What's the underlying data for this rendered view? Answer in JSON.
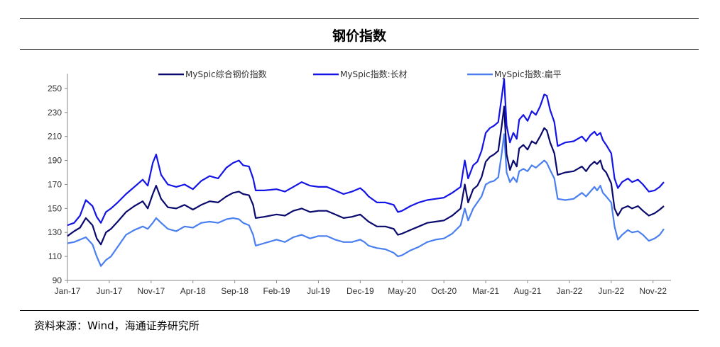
{
  "title": "钢价指数",
  "source": "资料来源：Wind，海通证券研究所",
  "chart_data": {
    "type": "line",
    "title": "钢价指数",
    "xlabel": "",
    "ylabel": "",
    "ylim": [
      90,
      260
    ],
    "yticks": [
      90,
      110,
      130,
      150,
      170,
      190,
      210,
      230,
      250
    ],
    "xlim": [
      0,
      71.3
    ],
    "xticks": [
      {
        "label": "Jan-17",
        "x": 0
      },
      {
        "label": "Jun-17",
        "x": 5
      },
      {
        "label": "Nov-17",
        "x": 10
      },
      {
        "label": "Apr-18",
        "x": 15
      },
      {
        "label": "Sep-18",
        "x": 20
      },
      {
        "label": "Feb-19",
        "x": 25
      },
      {
        "label": "Jul-19",
        "x": 30
      },
      {
        "label": "Dec-19",
        "x": 35
      },
      {
        "label": "May-20",
        "x": 40
      },
      {
        "label": "Oct-20",
        "x": 45
      },
      {
        "label": "Mar-21",
        "x": 50
      },
      {
        "label": "Aug-21",
        "x": 55
      },
      {
        "label": "Jan-22",
        "x": 60
      },
      {
        "label": "Jun-22",
        "x": 65
      },
      {
        "label": "Nov-22",
        "x": 70
      }
    ],
    "legend_position": "top",
    "series": [
      {
        "name": "MySpic综合钢价指数",
        "color": "#0a0a6e",
        "points": [
          [
            0,
            127
          ],
          [
            0.8,
            131
          ],
          [
            1.5,
            134
          ],
          [
            2.2,
            142
          ],
          [
            3,
            136
          ],
          [
            3.5,
            125
          ],
          [
            4,
            120
          ],
          [
            4.6,
            130
          ],
          [
            5.2,
            133
          ],
          [
            6,
            139
          ],
          [
            7,
            147
          ],
          [
            8,
            152
          ],
          [
            9,
            156
          ],
          [
            9.6,
            150
          ],
          [
            10.2,
            162
          ],
          [
            10.6,
            169
          ],
          [
            11.2,
            158
          ],
          [
            12,
            151
          ],
          [
            13,
            150
          ],
          [
            14,
            153
          ],
          [
            15,
            149
          ],
          [
            16,
            153
          ],
          [
            17,
            156
          ],
          [
            18,
            155
          ],
          [
            19,
            160
          ],
          [
            19.8,
            163
          ],
          [
            20.5,
            164
          ],
          [
            21,
            162
          ],
          [
            21.7,
            161
          ],
          [
            22.2,
            153
          ],
          [
            22.5,
            142
          ],
          [
            23.5,
            143
          ],
          [
            25,
            145
          ],
          [
            26,
            144
          ],
          [
            27,
            148
          ],
          [
            28,
            150
          ],
          [
            29,
            147
          ],
          [
            30,
            148
          ],
          [
            31,
            148
          ],
          [
            32,
            145
          ],
          [
            33,
            142
          ],
          [
            34,
            143
          ],
          [
            35,
            145
          ],
          [
            35.5,
            142
          ],
          [
            36,
            139
          ],
          [
            37,
            135
          ],
          [
            38,
            135
          ],
          [
            39,
            133
          ],
          [
            39.5,
            128
          ],
          [
            40,
            129
          ],
          [
            41,
            132
          ],
          [
            42,
            135
          ],
          [
            43,
            138
          ],
          [
            44,
            139
          ],
          [
            45,
            140
          ],
          [
            46,
            144
          ],
          [
            47,
            150
          ],
          [
            47.5,
            170
          ],
          [
            47.9,
            155
          ],
          [
            48.5,
            166
          ],
          [
            49,
            169
          ],
          [
            49.5,
            176
          ],
          [
            50,
            189
          ],
          [
            50.5,
            193
          ],
          [
            51,
            195
          ],
          [
            51.5,
            198
          ],
          [
            51.9,
            218
          ],
          [
            52.2,
            235
          ],
          [
            52.5,
            195
          ],
          [
            52.9,
            182
          ],
          [
            53.3,
            190
          ],
          [
            53.7,
            185
          ],
          [
            54,
            200
          ],
          [
            54.5,
            203
          ],
          [
            55,
            199
          ],
          [
            55.5,
            206
          ],
          [
            56,
            204
          ],
          [
            56.5,
            210
          ],
          [
            57,
            217
          ],
          [
            57.3,
            215
          ],
          [
            57.7,
            205
          ],
          [
            58.2,
            196
          ],
          [
            58.6,
            178
          ],
          [
            59.5,
            180
          ],
          [
            60.5,
            181
          ],
          [
            61.5,
            185
          ],
          [
            62,
            181
          ],
          [
            62.5,
            186
          ],
          [
            63,
            189
          ],
          [
            63.3,
            187
          ],
          [
            63.7,
            190
          ],
          [
            64,
            183
          ],
          [
            64.4,
            180
          ],
          [
            65,
            171
          ],
          [
            65.4,
            150
          ],
          [
            65.8,
            144
          ],
          [
            66.3,
            150
          ],
          [
            67,
            152
          ],
          [
            67.5,
            150
          ],
          [
            68.2,
            152
          ],
          [
            68.8,
            148
          ],
          [
            69.5,
            144
          ],
          [
            70.2,
            146
          ],
          [
            70.8,
            149
          ],
          [
            71.3,
            152
          ]
        ]
      },
      {
        "name": "MySpic指数:长材",
        "color": "#1414e6",
        "points": [
          [
            0,
            136
          ],
          [
            0.8,
            138
          ],
          [
            1.5,
            144
          ],
          [
            2.2,
            157
          ],
          [
            3,
            152
          ],
          [
            3.5,
            143
          ],
          [
            4,
            138
          ],
          [
            4.6,
            147
          ],
          [
            5.2,
            150
          ],
          [
            6,
            155
          ],
          [
            7,
            162
          ],
          [
            8,
            168
          ],
          [
            9,
            174
          ],
          [
            9.6,
            169
          ],
          [
            10.2,
            188
          ],
          [
            10.6,
            195
          ],
          [
            11.2,
            178
          ],
          [
            12,
            170
          ],
          [
            13,
            168
          ],
          [
            14,
            170
          ],
          [
            15,
            166
          ],
          [
            16,
            173
          ],
          [
            17,
            177
          ],
          [
            18,
            175
          ],
          [
            19,
            184
          ],
          [
            19.8,
            188
          ],
          [
            20.5,
            190
          ],
          [
            21,
            186
          ],
          [
            21.7,
            185
          ],
          [
            22.2,
            175
          ],
          [
            22.5,
            165
          ],
          [
            23.5,
            165
          ],
          [
            25,
            166
          ],
          [
            26,
            164
          ],
          [
            27,
            168
          ],
          [
            28,
            172
          ],
          [
            29,
            169
          ],
          [
            30,
            168
          ],
          [
            31,
            168
          ],
          [
            32,
            165
          ],
          [
            33,
            162
          ],
          [
            34,
            164
          ],
          [
            35,
            167
          ],
          [
            35.5,
            164
          ],
          [
            36,
            160
          ],
          [
            37,
            155
          ],
          [
            38,
            155
          ],
          [
            39,
            153
          ],
          [
            39.5,
            147
          ],
          [
            40,
            148
          ],
          [
            41,
            152
          ],
          [
            42,
            155
          ],
          [
            43,
            157
          ],
          [
            44,
            158
          ],
          [
            45,
            159
          ],
          [
            46,
            163
          ],
          [
            47,
            168
          ],
          [
            47.5,
            190
          ],
          [
            47.9,
            175
          ],
          [
            48.5,
            186
          ],
          [
            49,
            189
          ],
          [
            49.5,
            198
          ],
          [
            50,
            213
          ],
          [
            50.5,
            217
          ],
          [
            51,
            219
          ],
          [
            51.5,
            222
          ],
          [
            51.9,
            242
          ],
          [
            52.2,
            258
          ],
          [
            52.5,
            219
          ],
          [
            52.9,
            205
          ],
          [
            53.3,
            213
          ],
          [
            53.7,
            208
          ],
          [
            54,
            224
          ],
          [
            54.5,
            228
          ],
          [
            55,
            223
          ],
          [
            55.5,
            231
          ],
          [
            56,
            228
          ],
          [
            56.5,
            235
          ],
          [
            57,
            245
          ],
          [
            57.3,
            244
          ],
          [
            57.7,
            232
          ],
          [
            58.2,
            222
          ],
          [
            58.6,
            202
          ],
          [
            59.5,
            205
          ],
          [
            60.5,
            206
          ],
          [
            61.5,
            210
          ],
          [
            62,
            206
          ],
          [
            62.5,
            211
          ],
          [
            63,
            214
          ],
          [
            63.3,
            211
          ],
          [
            63.7,
            213
          ],
          [
            64,
            207
          ],
          [
            64.4,
            203
          ],
          [
            65,
            196
          ],
          [
            65.4,
            175
          ],
          [
            65.8,
            167
          ],
          [
            66.3,
            172
          ],
          [
            67,
            175
          ],
          [
            67.5,
            172
          ],
          [
            68.2,
            174
          ],
          [
            68.8,
            170
          ],
          [
            69.5,
            164
          ],
          [
            70.2,
            165
          ],
          [
            70.8,
            168
          ],
          [
            71.3,
            172
          ]
        ]
      },
      {
        "name": "MySpic指数:扁平",
        "color": "#4a7ff0",
        "points": [
          [
            0,
            121
          ],
          [
            0.8,
            122
          ],
          [
            1.5,
            124
          ],
          [
            2.2,
            126
          ],
          [
            3,
            120
          ],
          [
            3.5,
            110
          ],
          [
            4,
            102
          ],
          [
            4.6,
            107
          ],
          [
            5.2,
            110
          ],
          [
            6,
            118
          ],
          [
            7,
            128
          ],
          [
            8,
            132
          ],
          [
            9,
            135
          ],
          [
            9.6,
            133
          ],
          [
            10.2,
            138
          ],
          [
            10.6,
            142
          ],
          [
            11.2,
            138
          ],
          [
            12,
            133
          ],
          [
            13,
            131
          ],
          [
            14,
            135
          ],
          [
            15,
            134
          ],
          [
            16,
            138
          ],
          [
            17,
            139
          ],
          [
            18,
            138
          ],
          [
            19,
            141
          ],
          [
            19.8,
            142
          ],
          [
            20.5,
            141
          ],
          [
            21,
            138
          ],
          [
            21.7,
            136
          ],
          [
            22.2,
            128
          ],
          [
            22.5,
            119
          ],
          [
            23.5,
            121
          ],
          [
            25,
            124
          ],
          [
            26,
            122
          ],
          [
            27,
            126
          ],
          [
            28,
            128
          ],
          [
            29,
            125
          ],
          [
            30,
            127
          ],
          [
            31,
            127
          ],
          [
            32,
            124
          ],
          [
            33,
            122
          ],
          [
            34,
            122
          ],
          [
            35,
            124
          ],
          [
            35.5,
            122
          ],
          [
            36,
            119
          ],
          [
            37,
            117
          ],
          [
            38,
            116
          ],
          [
            39,
            113
          ],
          [
            39.5,
            110
          ],
          [
            40,
            111
          ],
          [
            41,
            115
          ],
          [
            42,
            118
          ],
          [
            43,
            122
          ],
          [
            44,
            124
          ],
          [
            45,
            125
          ],
          [
            46,
            129
          ],
          [
            47,
            136
          ],
          [
            47.5,
            150
          ],
          [
            47.9,
            140
          ],
          [
            48.5,
            150
          ],
          [
            49,
            155
          ],
          [
            49.5,
            160
          ],
          [
            50,
            170
          ],
          [
            50.5,
            172
          ],
          [
            51,
            173
          ],
          [
            51.5,
            176
          ],
          [
            51.9,
            195
          ],
          [
            52.2,
            212
          ],
          [
            52.5,
            180
          ],
          [
            52.9,
            172
          ],
          [
            53.3,
            176
          ],
          [
            53.7,
            172
          ],
          [
            54,
            181
          ],
          [
            54.5,
            183
          ],
          [
            55,
            181
          ],
          [
            55.5,
            186
          ],
          [
            56,
            184
          ],
          [
            56.5,
            187
          ],
          [
            57,
            190
          ],
          [
            57.3,
            188
          ],
          [
            57.7,
            182
          ],
          [
            58.2,
            175
          ],
          [
            58.6,
            158
          ],
          [
            59.5,
            157
          ],
          [
            60.5,
            158
          ],
          [
            61.5,
            163
          ],
          [
            62,
            160
          ],
          [
            62.5,
            164
          ],
          [
            63,
            168
          ],
          [
            63.3,
            165
          ],
          [
            63.7,
            169
          ],
          [
            64,
            163
          ],
          [
            64.4,
            160
          ],
          [
            65,
            155
          ],
          [
            65.4,
            135
          ],
          [
            65.8,
            124
          ],
          [
            66.3,
            128
          ],
          [
            67,
            132
          ],
          [
            67.5,
            130
          ],
          [
            68.2,
            131
          ],
          [
            68.8,
            128
          ],
          [
            69.5,
            123
          ],
          [
            70.2,
            125
          ],
          [
            70.8,
            128
          ],
          [
            71.3,
            133
          ]
        ]
      }
    ]
  }
}
